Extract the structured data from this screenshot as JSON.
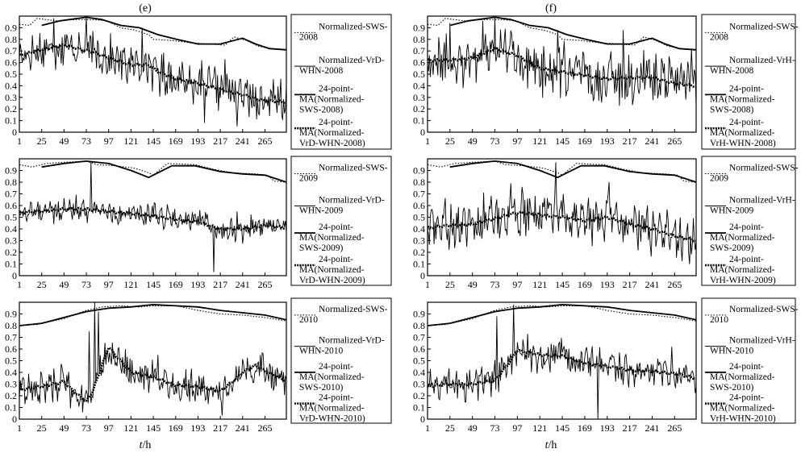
{
  "figure": {
    "column_labels": [
      "(e)",
      "(f)"
    ],
    "xlabel_main": "t",
    "xlabel_unit": "/h"
  },
  "axes": {
    "x_ticks": [
      1,
      25,
      49,
      73,
      97,
      121,
      145,
      169,
      193,
      217,
      241,
      265
    ],
    "y_ticks": [
      0,
      0.1,
      0.2,
      0.3,
      0.4,
      0.5,
      0.6,
      0.7,
      0.8,
      0.9
    ],
    "xlim": [
      1,
      288
    ],
    "ylim": [
      0,
      1
    ]
  },
  "chart_data": [
    {
      "id": "e-2008",
      "type": "line",
      "title": "(e)",
      "ylim": [
        0,
        1
      ],
      "xlim": [
        1,
        288
      ],
      "legend": [
        "Normalized-SWS-2008",
        "Normalized-VrD-WHN-2008",
        "24-point-MA(Normalized-SWS-2008)",
        "24-point-MA(Normalized-VrD-WHN-2008)"
      ],
      "sws": [
        [
          1,
          0.93
        ],
        [
          12,
          0.92
        ],
        [
          20,
          0.98
        ],
        [
          40,
          0.96
        ],
        [
          60,
          0.97
        ],
        [
          80,
          0.97
        ],
        [
          95,
          0.96
        ],
        [
          110,
          0.9
        ],
        [
          125,
          0.88
        ],
        [
          140,
          0.84
        ],
        [
          145,
          0.8
        ],
        [
          165,
          0.79
        ],
        [
          185,
          0.77
        ],
        [
          205,
          0.76
        ],
        [
          222,
          0.75
        ],
        [
          232,
          0.82
        ],
        [
          245,
          0.79
        ],
        [
          258,
          0.74
        ],
        [
          272,
          0.72
        ],
        [
          288,
          0.71
        ]
      ],
      "sws_ma": [
        [
          25,
          0.92
        ],
        [
          45,
          0.96
        ],
        [
          73,
          0.99
        ],
        [
          90,
          0.97
        ],
        [
          110,
          0.92
        ],
        [
          130,
          0.9
        ],
        [
          150,
          0.84
        ],
        [
          170,
          0.8
        ],
        [
          193,
          0.76
        ],
        [
          217,
          0.76
        ],
        [
          241,
          0.81
        ],
        [
          255,
          0.76
        ],
        [
          270,
          0.72
        ],
        [
          288,
          0.71
        ]
      ],
      "ma": [
        [
          1,
          0.66
        ],
        [
          15,
          0.69
        ],
        [
          35,
          0.73
        ],
        [
          49,
          0.75
        ],
        [
          65,
          0.72
        ],
        [
          80,
          0.69
        ],
        [
          97,
          0.64
        ],
        [
          121,
          0.58
        ],
        [
          140,
          0.58
        ],
        [
          150,
          0.52
        ],
        [
          170,
          0.46
        ],
        [
          193,
          0.42
        ],
        [
          217,
          0.37
        ],
        [
          241,
          0.32
        ],
        [
          265,
          0.27
        ],
        [
          288,
          0.26
        ]
      ],
      "noise": 0.13,
      "spikes": [
        [
          38,
          0.98
        ],
        [
          73,
          0.99
        ],
        [
          133,
          0.9
        ],
        [
          222,
          0.63
        ],
        [
          200,
          0.08
        ],
        [
          235,
          0.05
        ],
        [
          282,
          0.46
        ]
      ]
    },
    {
      "id": "f-2008",
      "type": "line",
      "title": "(f)",
      "ylim": [
        0,
        1
      ],
      "xlim": [
        1,
        288
      ],
      "legend": [
        "Normalized-SWS-2008",
        "Normalized-VrH-WHN-2008",
        "24-point-MA(Normalized-SWS-2008)",
        "24-point-MA(Normalized-VrH-WHN-2008)"
      ],
      "sws": [
        [
          1,
          0.93
        ],
        [
          12,
          0.92
        ],
        [
          20,
          0.98
        ],
        [
          40,
          0.96
        ],
        [
          60,
          0.97
        ],
        [
          80,
          0.97
        ],
        [
          95,
          0.96
        ],
        [
          110,
          0.9
        ],
        [
          125,
          0.88
        ],
        [
          140,
          0.84
        ],
        [
          145,
          0.8
        ],
        [
          165,
          0.79
        ],
        [
          185,
          0.77
        ],
        [
          205,
          0.76
        ],
        [
          222,
          0.75
        ],
        [
          232,
          0.82
        ],
        [
          245,
          0.79
        ],
        [
          258,
          0.74
        ],
        [
          272,
          0.72
        ],
        [
          288,
          0.71
        ]
      ],
      "sws_ma": [
        [
          25,
          0.92
        ],
        [
          45,
          0.96
        ],
        [
          73,
          0.99
        ],
        [
          90,
          0.97
        ],
        [
          110,
          0.92
        ],
        [
          130,
          0.9
        ],
        [
          150,
          0.84
        ],
        [
          170,
          0.8
        ],
        [
          193,
          0.76
        ],
        [
          217,
          0.76
        ],
        [
          241,
          0.81
        ],
        [
          255,
          0.76
        ],
        [
          270,
          0.72
        ],
        [
          288,
          0.71
        ]
      ],
      "ma": [
        [
          1,
          0.62
        ],
        [
          25,
          0.62
        ],
        [
          49,
          0.64
        ],
        [
          73,
          0.72
        ],
        [
          97,
          0.66
        ],
        [
          121,
          0.55
        ],
        [
          145,
          0.52
        ],
        [
          169,
          0.49
        ],
        [
          193,
          0.46
        ],
        [
          217,
          0.47
        ],
        [
          241,
          0.47
        ],
        [
          265,
          0.42
        ],
        [
          288,
          0.4
        ]
      ],
      "noise": 0.17,
      "spikes": [
        [
          25,
          0.94
        ],
        [
          60,
          0.96
        ],
        [
          73,
          0.99
        ],
        [
          140,
          0.88
        ],
        [
          210,
          0.88
        ],
        [
          283,
          0.72
        ]
      ]
    },
    {
      "id": "e-2009",
      "type": "line",
      "title": "",
      "ylim": [
        0,
        1
      ],
      "xlim": [
        1,
        288
      ],
      "legend": [
        "Normalized-SWS-2009",
        "Normalized-VrD-WHN-2009",
        "24-point-MA(Normalized-SWS-2009)",
        "24-point-MA(Normalized-VrD-WHN-2009)"
      ],
      "sws": [
        [
          1,
          0.95
        ],
        [
          15,
          0.93
        ],
        [
          30,
          0.96
        ],
        [
          50,
          0.97
        ],
        [
          73,
          0.98
        ],
        [
          85,
          0.95
        ],
        [
          105,
          0.94
        ],
        [
          125,
          0.92
        ],
        [
          140,
          0.88
        ],
        [
          145,
          0.86
        ],
        [
          160,
          0.96
        ],
        [
          190,
          0.95
        ],
        [
          210,
          0.91
        ],
        [
          230,
          0.88
        ],
        [
          255,
          0.87
        ],
        [
          268,
          0.86
        ],
        [
          275,
          0.81
        ],
        [
          288,
          0.8
        ]
      ],
      "sws_ma": [
        [
          25,
          0.93
        ],
        [
          49,
          0.96
        ],
        [
          73,
          0.98
        ],
        [
          97,
          0.96
        ],
        [
          121,
          0.9
        ],
        [
          140,
          0.84
        ],
        [
          165,
          0.94
        ],
        [
          190,
          0.94
        ],
        [
          217,
          0.89
        ],
        [
          241,
          0.87
        ],
        [
          265,
          0.86
        ],
        [
          288,
          0.8
        ]
      ],
      "ma": [
        [
          1,
          0.54
        ],
        [
          25,
          0.55
        ],
        [
          49,
          0.57
        ],
        [
          73,
          0.57
        ],
        [
          97,
          0.55
        ],
        [
          121,
          0.53
        ],
        [
          145,
          0.51
        ],
        [
          169,
          0.48
        ],
        [
          193,
          0.46
        ],
        [
          217,
          0.4
        ],
        [
          241,
          0.4
        ],
        [
          265,
          0.43
        ],
        [
          288,
          0.41
        ]
      ],
      "noise": 0.08,
      "spikes": [
        [
          78,
          0.97
        ],
        [
          210,
          0.03
        ],
        [
          235,
          0.55
        ]
      ]
    },
    {
      "id": "f-2009",
      "type": "line",
      "title": "",
      "ylim": [
        0,
        1
      ],
      "xlim": [
        1,
        288
      ],
      "legend": [
        "Normalized-SWS-2009",
        "Normalized-VrH-WHN-2009",
        "24-point-MA(Normalized-SWS-2009)",
        "24-point-MA(Normalized-VrH-WHN-2009)"
      ],
      "sws": [
        [
          1,
          0.95
        ],
        [
          15,
          0.93
        ],
        [
          30,
          0.96
        ],
        [
          50,
          0.97
        ],
        [
          73,
          0.98
        ],
        [
          85,
          0.95
        ],
        [
          105,
          0.94
        ],
        [
          125,
          0.92
        ],
        [
          140,
          0.88
        ],
        [
          145,
          0.86
        ],
        [
          160,
          0.96
        ],
        [
          190,
          0.95
        ],
        [
          210,
          0.91
        ],
        [
          230,
          0.88
        ],
        [
          255,
          0.87
        ],
        [
          268,
          0.86
        ],
        [
          275,
          0.81
        ],
        [
          288,
          0.8
        ]
      ],
      "sws_ma": [
        [
          25,
          0.93
        ],
        [
          49,
          0.96
        ],
        [
          73,
          0.98
        ],
        [
          97,
          0.96
        ],
        [
          121,
          0.9
        ],
        [
          140,
          0.84
        ],
        [
          165,
          0.94
        ],
        [
          190,
          0.94
        ],
        [
          217,
          0.89
        ],
        [
          241,
          0.87
        ],
        [
          265,
          0.86
        ],
        [
          288,
          0.8
        ]
      ],
      "ma": [
        [
          1,
          0.41
        ],
        [
          25,
          0.43
        ],
        [
          49,
          0.44
        ],
        [
          73,
          0.49
        ],
        [
          97,
          0.54
        ],
        [
          121,
          0.52
        ],
        [
          145,
          0.5
        ],
        [
          169,
          0.47
        ],
        [
          193,
          0.5
        ],
        [
          217,
          0.44
        ],
        [
          241,
          0.4
        ],
        [
          265,
          0.34
        ],
        [
          288,
          0.3
        ]
      ],
      "noise": 0.15,
      "spikes": [
        [
          90,
          0.79
        ],
        [
          138,
          0.97
        ],
        [
          195,
          0.8
        ],
        [
          260,
          0.22
        ]
      ]
    },
    {
      "id": "e-2010",
      "type": "line",
      "title": "",
      "ylim": [
        0,
        1
      ],
      "xlim": [
        1,
        288
      ],
      "legend": [
        "Normalized-SWS-2010",
        "Normalized-VrD-WHN-2010",
        "24-point-MA(Normalized-SWS-2010)",
        "24-point-MA(Normalized-VrD-WHN-2010)"
      ],
      "sws": [
        [
          1,
          0.8
        ],
        [
          20,
          0.81
        ],
        [
          49,
          0.86
        ],
        [
          62,
          0.9
        ],
        [
          73,
          0.93
        ],
        [
          90,
          0.96
        ],
        [
          110,
          0.97
        ],
        [
          130,
          0.96
        ],
        [
          145,
          0.97
        ],
        [
          170,
          0.97
        ],
        [
          193,
          0.93
        ],
        [
          217,
          0.9
        ],
        [
          241,
          0.89
        ],
        [
          265,
          0.87
        ],
        [
          288,
          0.84
        ]
      ],
      "sws_ma": [
        [
          1,
          0.8
        ],
        [
          25,
          0.82
        ],
        [
          49,
          0.87
        ],
        [
          73,
          0.92
        ],
        [
          97,
          0.95
        ],
        [
          121,
          0.96
        ],
        [
          145,
          0.98
        ],
        [
          169,
          0.97
        ],
        [
          193,
          0.96
        ],
        [
          217,
          0.93
        ],
        [
          241,
          0.91
        ],
        [
          265,
          0.89
        ],
        [
          288,
          0.85
        ]
      ],
      "ma": [
        [
          1,
          0.25
        ],
        [
          25,
          0.28
        ],
        [
          49,
          0.32
        ],
        [
          60,
          0.23
        ],
        [
          73,
          0.15
        ],
        [
          80,
          0.24
        ],
        [
          97,
          0.62
        ],
        [
          105,
          0.54
        ],
        [
          121,
          0.4
        ],
        [
          145,
          0.36
        ],
        [
          169,
          0.29
        ],
        [
          193,
          0.28
        ],
        [
          205,
          0.26
        ],
        [
          217,
          0.24
        ],
        [
          230,
          0.32
        ],
        [
          241,
          0.4
        ],
        [
          255,
          0.46
        ],
        [
          265,
          0.41
        ],
        [
          288,
          0.33
        ]
      ],
      "noise": 0.11,
      "spikes": [
        [
          76,
          0.75
        ],
        [
          82,
          1.0
        ],
        [
          86,
          0.92
        ],
        [
          120,
          0.52
        ],
        [
          150,
          0.55
        ],
        [
          219,
          0.03
        ],
        [
          260,
          0.55
        ]
      ]
    },
    {
      "id": "f-2010",
      "type": "line",
      "title": "",
      "ylim": [
        0,
        1
      ],
      "xlim": [
        1,
        288
      ],
      "legend": [
        "Normalized-SWS-2010",
        "Normalized-VrH-WHN-2010",
        "24-point-MA(Normalized-SWS-2010)",
        "24-point-MA(Normalized-VrH-WHN-2010)"
      ],
      "sws": [
        [
          1,
          0.8
        ],
        [
          20,
          0.81
        ],
        [
          49,
          0.86
        ],
        [
          62,
          0.9
        ],
        [
          73,
          0.93
        ],
        [
          90,
          0.96
        ],
        [
          110,
          0.97
        ],
        [
          130,
          0.96
        ],
        [
          145,
          0.97
        ],
        [
          170,
          0.97
        ],
        [
          193,
          0.93
        ],
        [
          217,
          0.9
        ],
        [
          241,
          0.89
        ],
        [
          265,
          0.87
        ],
        [
          288,
          0.84
        ]
      ],
      "sws_ma": [
        [
          1,
          0.8
        ],
        [
          25,
          0.82
        ],
        [
          49,
          0.87
        ],
        [
          73,
          0.92
        ],
        [
          97,
          0.95
        ],
        [
          121,
          0.96
        ],
        [
          145,
          0.98
        ],
        [
          169,
          0.97
        ],
        [
          193,
          0.96
        ],
        [
          217,
          0.93
        ],
        [
          241,
          0.91
        ],
        [
          265,
          0.89
        ],
        [
          288,
          0.85
        ]
      ],
      "ma": [
        [
          1,
          0.28
        ],
        [
          25,
          0.3
        ],
        [
          49,
          0.3
        ],
        [
          73,
          0.33
        ],
        [
          90,
          0.5
        ],
        [
          97,
          0.59
        ],
        [
          121,
          0.55
        ],
        [
          145,
          0.54
        ],
        [
          169,
          0.48
        ],
        [
          193,
          0.45
        ],
        [
          217,
          0.42
        ],
        [
          241,
          0.41
        ],
        [
          265,
          0.39
        ],
        [
          288,
          0.35
        ]
      ],
      "noise": 0.11,
      "spikes": [
        [
          75,
          0.88
        ],
        [
          93,
          0.98
        ],
        [
          183,
          0.0
        ],
        [
          262,
          0.62
        ]
      ]
    }
  ]
}
